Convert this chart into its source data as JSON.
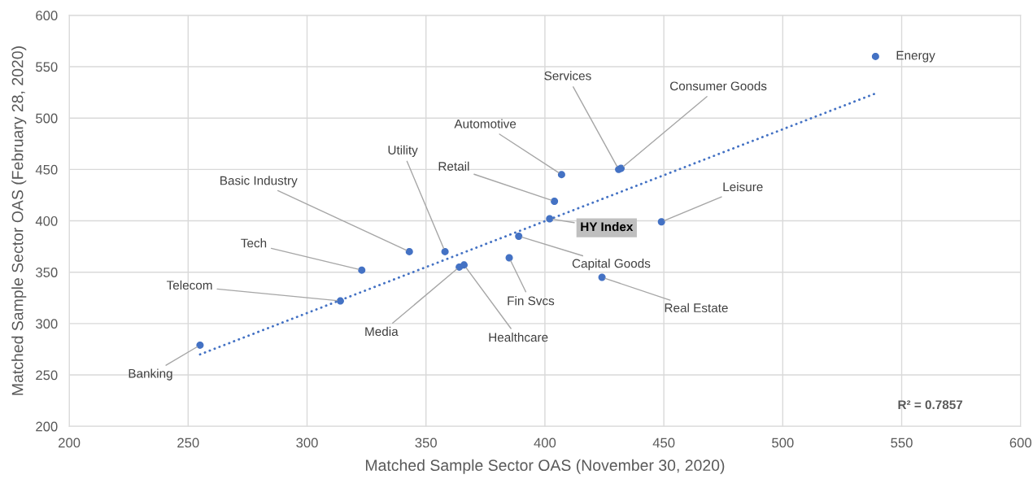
{
  "chart_data": {
    "type": "scatter",
    "xlabel": "Matched Sample Sector OAS (November 30, 2020)",
    "ylabel": "Matched Sample Sector OAS (February 28, 2020)",
    "xlim": [
      200,
      600
    ],
    "xticks": [
      200,
      250,
      300,
      350,
      400,
      450,
      500,
      550,
      600
    ],
    "ylim": [
      200,
      600
    ],
    "yticks": [
      200,
      250,
      300,
      350,
      400,
      450,
      500,
      550,
      600
    ],
    "grid": true,
    "marker": "circle",
    "series": [
      {
        "color": "#4472c4",
        "x": [
          539,
          431,
          432,
          407,
          404,
          402,
          449,
          389,
          385,
          424,
          358,
          343,
          323,
          364,
          366,
          314,
          255
        ],
        "values": [
          560,
          450,
          451,
          445,
          419,
          402,
          399,
          385,
          364,
          345,
          370,
          370,
          352,
          355,
          357,
          322,
          279
        ]
      },
      {
        "type": "line",
        "color": "#4472c4",
        "line_style": "dotted",
        "marker": "none",
        "x": [
          255,
          539
        ],
        "values": [
          270,
          524
        ]
      }
    ],
    "annotations": [
      {
        "text": "Energy",
        "x": 539,
        "y": 560
      },
      {
        "text": "Services",
        "x": 431,
        "y": 450
      },
      {
        "text": "Consumer Goods",
        "x": 432,
        "y": 451
      },
      {
        "text": "Automotive",
        "x": 407,
        "y": 445
      },
      {
        "text": "Retail",
        "x": 404,
        "y": 419
      },
      {
        "text": "HY Index",
        "x": 402,
        "y": 402
      },
      {
        "text": "Leisure",
        "x": 449,
        "y": 399
      },
      {
        "text": "Capital Goods",
        "x": 389,
        "y": 385
      },
      {
        "text": "Fin Svcs",
        "x": 385,
        "y": 364
      },
      {
        "text": "Real Estate",
        "x": 424,
        "y": 345
      },
      {
        "text": "Utility",
        "x": 358,
        "y": 370
      },
      {
        "text": "Basic Industry",
        "x": 343,
        "y": 370
      },
      {
        "text": "Tech",
        "x": 323,
        "y": 352
      },
      {
        "text": "Media",
        "x": 364,
        "y": 355
      },
      {
        "text": "Healthcare",
        "x": 366,
        "y": 357
      },
      {
        "text": "Telecom",
        "x": 314,
        "y": 322
      },
      {
        "text": "Banking",
        "x": 255,
        "y": 279
      },
      "R² = 0.7857"
    ]
  }
}
